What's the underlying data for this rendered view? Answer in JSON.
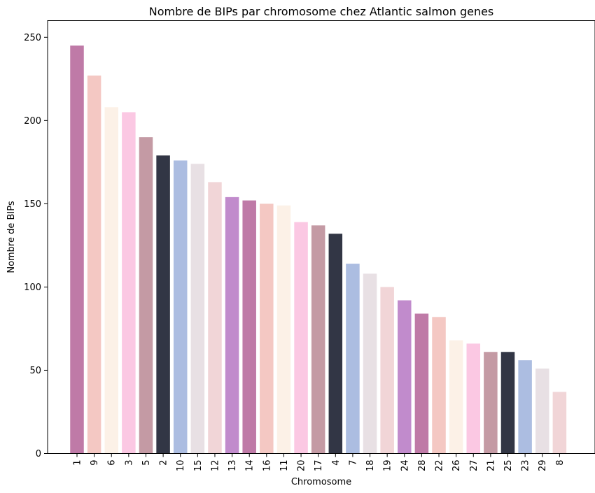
{
  "chart_data": {
    "type": "bar",
    "title": "Nombre de BIPs par chromosome chez Atlantic salmon genes",
    "xlabel": "Chromosome",
    "ylabel": "Nombre de BIPs",
    "ylim": [
      0,
      260
    ],
    "yticks": [
      0,
      50,
      100,
      150,
      200,
      250
    ],
    "grid": false,
    "categories": [
      "1",
      "9",
      "6",
      "3",
      "5",
      "2",
      "10",
      "15",
      "12",
      "13",
      "14",
      "16",
      "11",
      "20",
      "17",
      "4",
      "7",
      "18",
      "19",
      "24",
      "28",
      "22",
      "26",
      "27",
      "21",
      "25",
      "23",
      "29",
      "8"
    ],
    "values": [
      245,
      227,
      208,
      205,
      190,
      179,
      176,
      174,
      163,
      154,
      152,
      150,
      149,
      139,
      137,
      132,
      114,
      108,
      100,
      92,
      84,
      82,
      68,
      66,
      61,
      61,
      56,
      51,
      37
    ],
    "colors": [
      "#bf7aa7",
      "#f4c8c3",
      "#fcf1e7",
      "#fbc8e3",
      "#c49aa4",
      "#323645",
      "#acbde1",
      "#e8e0e4",
      "#f1d5d7",
      "#c18bcc",
      "#bf7aa7",
      "#f4c8c3",
      "#fcf1e7",
      "#fbc8e3",
      "#c49aa4",
      "#323645",
      "#acbde1",
      "#e8e0e4",
      "#f1d5d7",
      "#c18bcc",
      "#bf7aa7",
      "#f4c8c3",
      "#fcf1e7",
      "#fbc8e3",
      "#c49aa4",
      "#323645",
      "#acbde1",
      "#e8e0e4",
      "#f1d5d7"
    ]
  }
}
